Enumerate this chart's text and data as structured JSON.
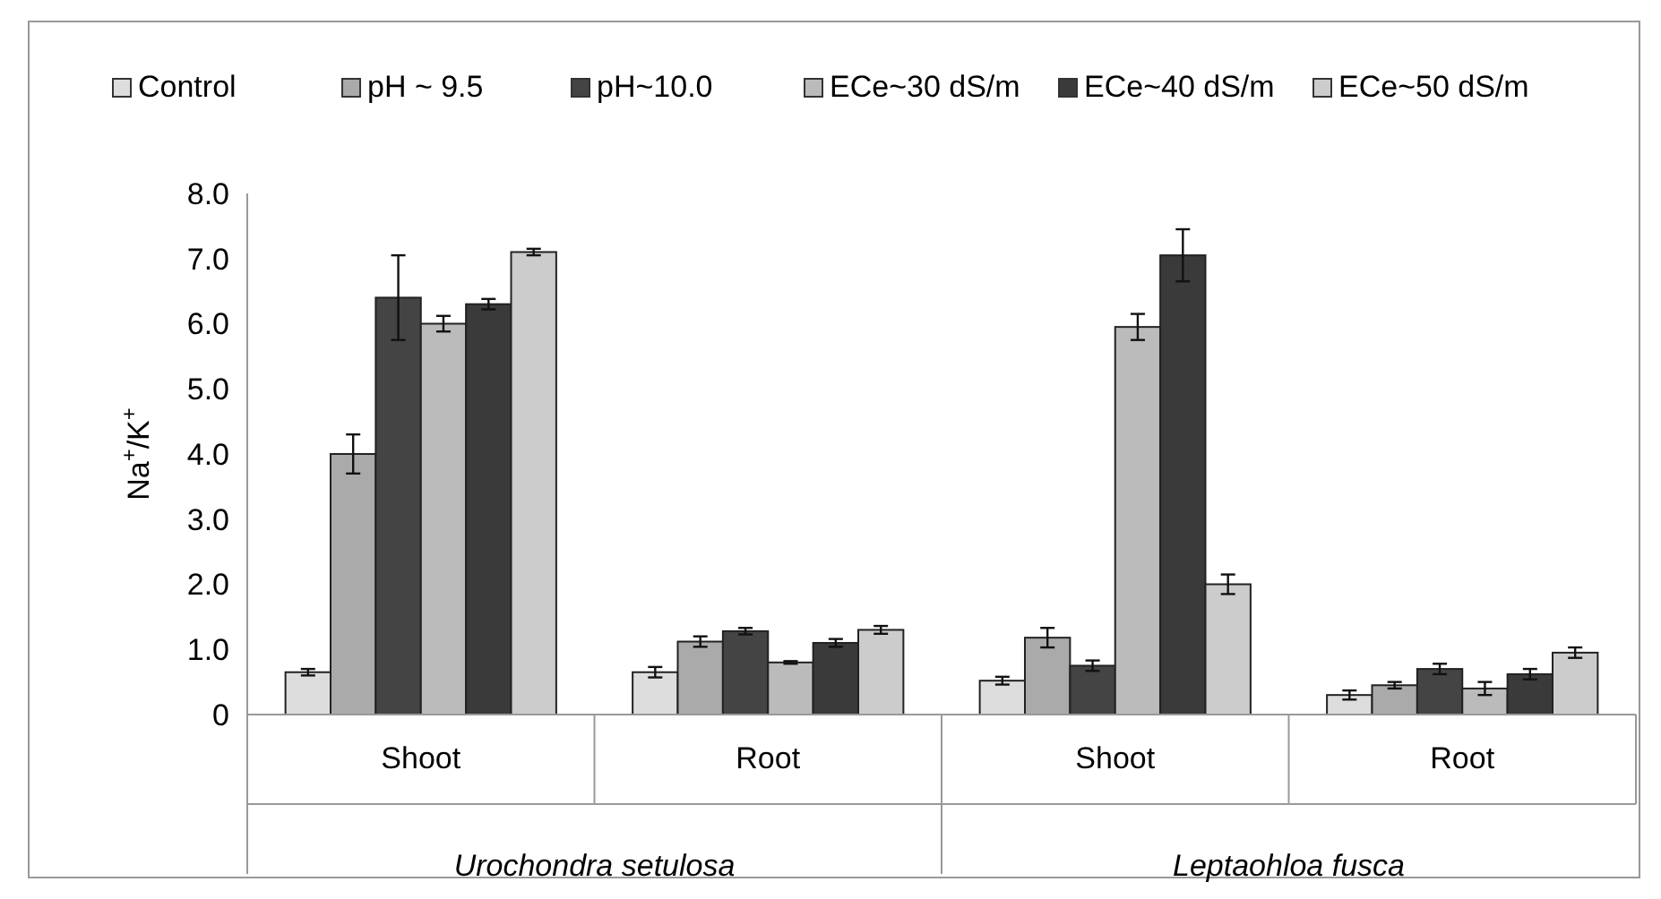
{
  "chart_data": {
    "type": "bar",
    "ylabel": "Na$^{+}$/K$^{+}$",
    "categories": [
      "Shoot",
      "Root",
      "Shoot",
      "Root"
    ],
    "annotations": [
      "Urochondra setulosa",
      "Leptaohloa fusca"
    ],
    "series": [
      {
        "name": "Control",
        "color": "#dddddd",
        "values": [
          0.65,
          0.65,
          0.52,
          0.3
        ],
        "errors": [
          0.05,
          0.08,
          0.06,
          0.07
        ]
      },
      {
        "name": "pH ~ 9.5",
        "color": "#aaaaaa",
        "values": [
          4.0,
          1.12,
          1.18,
          0.45
        ],
        "errors": [
          0.3,
          0.08,
          0.15,
          0.05
        ]
      },
      {
        "name": "pH~10.0",
        "color": "#444444",
        "values": [
          6.4,
          1.28,
          0.75,
          0.7
        ],
        "errors": [
          0.65,
          0.05,
          0.08,
          0.08
        ]
      },
      {
        "name": "ECe~30 dS/m",
        "color": "#bbbbbb",
        "values": [
          6.0,
          0.8,
          5.95,
          0.4
        ],
        "errors": [
          0.12,
          0.02,
          0.2,
          0.1
        ]
      },
      {
        "name": "ECe~40 dS/m",
        "color": "#3a3a3a",
        "values": [
          6.3,
          1.1,
          7.05,
          0.62
        ],
        "errors": [
          0.08,
          0.06,
          0.4,
          0.08
        ]
      },
      {
        "name": "ECe~50 dS/m",
        "color": "#cccccc",
        "values": [
          7.1,
          1.3,
          2.0,
          0.95
        ],
        "errors": [
          0.05,
          0.06,
          0.15,
          0.08
        ]
      }
    ],
    "ylim": [
      0,
      8
    ],
    "yticks": [
      {
        "value": 0,
        "label": "0"
      },
      {
        "value": 1,
        "label": "1.0"
      },
      {
        "value": 2,
        "label": "2.0"
      },
      {
        "value": 3,
        "label": "3.0"
      },
      {
        "value": 4,
        "label": "4.0"
      },
      {
        "value": 5,
        "label": "5.0"
      },
      {
        "value": 6,
        "label": "6.0"
      },
      {
        "value": 7,
        "label": "7.0"
      },
      {
        "value": 8,
        "label": "8.0"
      }
    ],
    "legend": "top",
    "grid": false
  }
}
